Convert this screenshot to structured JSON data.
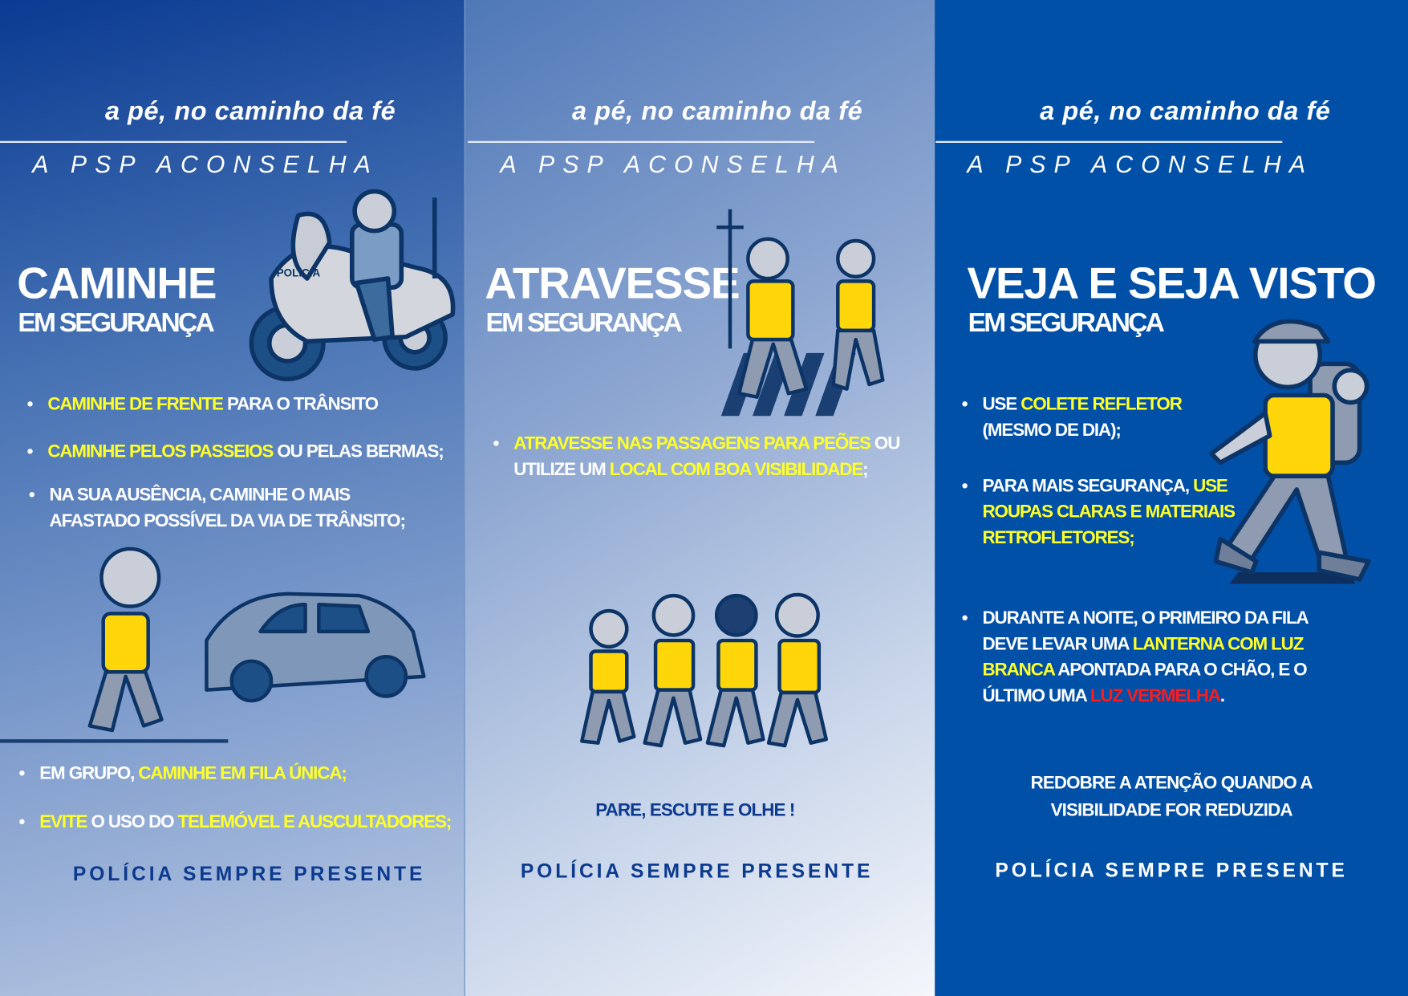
{
  "colors": {
    "panel_dark": "#0050a8",
    "text_navy": "#0b3a8f",
    "highlight": "#ffff2a",
    "warning": "#ff1a1a",
    "vest": "#ffd60a"
  },
  "panels": [
    {
      "tagline": "a pé, no caminho da fé",
      "subtitle": "A PSP ACONSELHA",
      "heading": "CAMINHE",
      "subheading": "EM SEGURANÇA",
      "illustrations": [
        "police-motorcycle",
        "child-walking-and-car"
      ],
      "bullets": [
        [
          {
            "t": "CAMINHE DE FRENTE",
            "c": "y"
          },
          {
            "t": " PARA O TRÂNSITO",
            "c": "w"
          }
        ],
        [
          {
            "t": "CAMINHE PELOS PASSEIOS",
            "c": "y"
          },
          {
            "t": " OU PELAS BERMAS;",
            "c": "w"
          }
        ],
        [
          {
            "t": "NA SUA AUSÊNCIA, CAMINHE O MAIS\nAFASTADO POSSÍVEL DA VIA DE TRÂNSITO;",
            "c": "w"
          }
        ],
        [
          {
            "t": "EM GRUPO, ",
            "c": "w"
          },
          {
            "t": "CAMINHE EM FILA ÚNICA;",
            "c": "y"
          }
        ],
        [
          {
            "t": "EVITE",
            "c": "y"
          },
          {
            "t": " O USO DO ",
            "c": "w"
          },
          {
            "t": "TELEMÓVEL E AUSCULTADORES;",
            "c": "y"
          }
        ]
      ],
      "footer": "POLÍCIA SEMPRE PRESENTE"
    },
    {
      "tagline": "a pé, no caminho da fé",
      "subtitle": "A PSP ACONSELHA",
      "heading": "ATRAVESSE",
      "subheading": "EM SEGURANÇA",
      "illustrations": [
        "pilgrims-on-crosswalk",
        "family-walking-in-line"
      ],
      "bullets": [
        [
          {
            "t": "ATRAVESSE NAS PASSAGENS PARA PEÕES",
            "c": "y"
          },
          {
            "t": " OU\nUTILIZE UM ",
            "c": "w"
          },
          {
            "t": "LOCAL COM BOA VISIBILIDADE",
            "c": "y"
          },
          {
            "t": ";",
            "c": "w"
          }
        ]
      ],
      "note": "PARE, ESCUTE E OLHE !",
      "footer": "POLÍCIA SEMPRE PRESENTE"
    },
    {
      "tagline": "a pé, no caminho da fé",
      "subtitle": "A PSP ACONSELHA",
      "heading": "VEJA E SEJA VISTO",
      "subheading": "EM SEGURANÇA",
      "illustrations": [
        "boy-hiker-walking"
      ],
      "bullets": [
        [
          {
            "t": "USE ",
            "c": "w"
          },
          {
            "t": "COLETE REFLETOR",
            "c": "y"
          },
          {
            "t": "\n(MESMO DE DIA);",
            "c": "w"
          }
        ],
        [
          {
            "t": "PARA MAIS SEGURANÇA, ",
            "c": "w"
          },
          {
            "t": "USE\nROUPAS CLARAS E MATERIAIS\nRETROFLETORES;",
            "c": "y"
          }
        ],
        [
          {
            "t": "DURANTE A NOITE, O PRIMEIRO DA FILA\nDEVE LEVAR UMA ",
            "c": "w"
          },
          {
            "t": "LANTERNA COM LUZ\nBRANCA",
            "c": "y"
          },
          {
            "t": " APONTADA PARA O CHÃO, E O\nÚLTIMO UMA ",
            "c": "w"
          },
          {
            "t": "LUZ VERMELHA",
            "c": "r"
          },
          {
            "t": ".",
            "c": "w"
          }
        ]
      ],
      "note": "REDOBRE A ATENÇÃO QUANDO A\nVISIBILIDADE FOR REDUZIDA",
      "footer": "POLÍCIA SEMPRE PRESENTE"
    }
  ]
}
